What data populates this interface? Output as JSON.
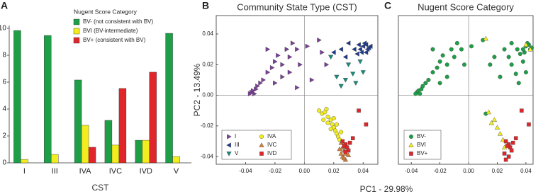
{
  "chart_data": [
    {
      "type": "bar",
      "panel": "A",
      "x_label": "CST",
      "categories": [
        "I",
        "III",
        "IVA",
        "IVC",
        "IVD",
        "V"
      ],
      "legend_title": "Nugent Score Category",
      "series": [
        {
          "name": "BV- (not consistent with BV)",
          "color": "#1f9e48",
          "values": [
            9.84,
            9.47,
            6.16,
            3.16,
            1.68,
            9.63
          ]
        },
        {
          "name": "BVI (BV-intermediate)",
          "color": "#f3ec1e",
          "values": [
            0.26,
            0.63,
            2.79,
            1.32,
            1.68,
            0.47
          ]
        },
        {
          "name": "BV+ (consistent with BV)",
          "color": "#e0262a",
          "values": [
            0,
            0,
            1.16,
            5.53,
            6.74,
            0
          ]
        }
      ],
      "ylim": [
        0,
        10
      ],
      "yticks": [
        0,
        2,
        4,
        6,
        8,
        10
      ]
    },
    {
      "type": "scatter",
      "panel": "B",
      "title": "Community State Type (CST)",
      "y_label": "PC2 - 13.49%",
      "x_label": "PC1 - 29.98%",
      "xlim": [
        -0.06,
        0.05
      ],
      "ylim": [
        -0.045,
        0.052
      ],
      "xticks": [
        -0.04,
        -0.02,
        {
          "value": 0,
          "label": "0.00"
        },
        0.02,
        0.04
      ],
      "yticks": [
        -0.04,
        -0.02,
        {
          "value": 0,
          "label": "0.00"
        },
        0.02,
        0.04
      ],
      "legend": "lower left",
      "series": [
        {
          "name": "I",
          "color": "#7b3f98",
          "marker": "tri-right",
          "x": [
            -0.036,
            -0.035,
            -0.034,
            -0.033,
            -0.037,
            -0.032,
            -0.03,
            -0.028,
            -0.025,
            -0.022,
            -0.02,
            -0.018,
            -0.015,
            -0.012,
            -0.01,
            -0.008,
            -0.005,
            -0.003,
            -0.015,
            -0.02,
            -0.025,
            -0.01,
            0.002,
            0.01,
            0.012,
            0.015,
            0.005,
            -0.005
          ],
          "y": [
            0.002,
            0.003,
            0.001,
            0.004,
            0.001,
            0.006,
            0.008,
            0.01,
            0.015,
            0.018,
            0.022,
            0.026,
            0.02,
            0.03,
            0.025,
            0.034,
            0.03,
            0.02,
            0.012,
            0.008,
            0.03,
            0.015,
            0.032,
            0.036,
            0.028,
            0.02,
            0.01,
            0.005
          ]
        },
        {
          "name": "III",
          "color": "#1f3b8f",
          "marker": "tri-left",
          "x": [
            0.04,
            0.042,
            0.043,
            0.044,
            0.041,
            0.039,
            0.038,
            0.045,
            0.036,
            0.034,
            0.03,
            0.028,
            0.025,
            0.02,
            0.037,
            0.042
          ],
          "y": [
            0.032,
            0.033,
            0.03,
            0.031,
            0.034,
            0.028,
            0.03,
            0.032,
            0.027,
            0.03,
            0.034,
            0.025,
            0.03,
            0.028,
            0.033,
            0.028
          ]
        },
        {
          "name": "V",
          "color": "#1b8a7a",
          "marker": "tri-down",
          "x": [
            0.022,
            0.028,
            0.033,
            0.035,
            0.04,
            0.03,
            0.025,
            0.038,
            0.018
          ],
          "y": [
            0.012,
            0.01,
            0.014,
            0.008,
            0.015,
            0.02,
            0.006,
            0.022,
            0.025
          ]
        },
        {
          "name": "IVA",
          "color": "#f3ec1e",
          "marker": "circle",
          "x": [
            0.01,
            0.012,
            0.014,
            0.016,
            0.018,
            0.019,
            0.02,
            0.021,
            0.022,
            0.023,
            0.024,
            0.018,
            0.016,
            0.02,
            0.022,
            0.025,
            0.015,
            0.013
          ],
          "y": [
            -0.01,
            -0.012,
            -0.011,
            -0.014,
            -0.016,
            -0.019,
            -0.021,
            -0.023,
            -0.025,
            -0.027,
            -0.029,
            -0.022,
            -0.018,
            -0.015,
            -0.019,
            -0.024,
            -0.009,
            -0.016
          ]
        },
        {
          "name": "IVC",
          "color": "#d9823b",
          "marker": "tri-up",
          "x": [
            0.025,
            0.026,
            0.027,
            0.028,
            0.026,
            0.028,
            0.025,
            0.029,
            0.024,
            0.027,
            0.03
          ],
          "y": [
            -0.031,
            -0.034,
            -0.036,
            -0.038,
            -0.04,
            -0.042,
            -0.038,
            -0.034,
            -0.035,
            -0.041,
            -0.039
          ]
        },
        {
          "name": "IVD",
          "color": "#e0262a",
          "marker": "square",
          "x": [
            0.026,
            0.028,
            0.029,
            0.03,
            0.027,
            0.031,
            0.037,
            0.042,
            0.033,
            0.028
          ],
          "y": [
            -0.03,
            -0.032,
            -0.034,
            -0.036,
            -0.033,
            -0.031,
            -0.01,
            -0.019,
            -0.028,
            -0.037
          ]
        }
      ]
    },
    {
      "type": "scatter",
      "panel": "C",
      "title": "Nugent Score Category",
      "xlim": [
        -0.049,
        0.045
      ],
      "ylim": [
        -0.045,
        0.052
      ],
      "xticks": [
        -0.04,
        -0.02,
        {
          "value": 0,
          "label": "0.00"
        },
        0.02,
        0.04
      ],
      "legend": "lower left",
      "series": [
        {
          "name": "BV-",
          "color": "#1f9e48",
          "marker": "circle",
          "x": [
            -0.036,
            -0.035,
            -0.034,
            -0.033,
            -0.037,
            -0.032,
            -0.03,
            -0.028,
            -0.025,
            -0.022,
            -0.02,
            -0.018,
            -0.015,
            -0.012,
            -0.01,
            -0.008,
            -0.005,
            -0.003,
            -0.015,
            -0.02,
            -0.025,
            0.002,
            0.01,
            0.015,
            0.04,
            0.042,
            0.043,
            0.044,
            0.041,
            0.039,
            0.038,
            0.036,
            0.034,
            0.03,
            0.028,
            0.025,
            0.022,
            0.033,
            0.035,
            0.04,
            0.03,
            0.038,
            0.018,
            0.012
          ],
          "y": [
            0.002,
            0.003,
            0.001,
            0.004,
            0.001,
            0.006,
            0.008,
            0.01,
            0.015,
            0.018,
            0.022,
            0.026,
            0.02,
            0.03,
            0.025,
            0.034,
            0.03,
            0.02,
            0.012,
            0.008,
            0.03,
            0.032,
            0.036,
            0.02,
            0.032,
            0.033,
            0.03,
            0.031,
            0.034,
            0.028,
            0.03,
            0.027,
            0.03,
            0.034,
            0.025,
            0.03,
            0.012,
            0.014,
            0.008,
            0.015,
            0.02,
            0.022,
            0.025,
            -0.012
          ]
        },
        {
          "name": "BVI",
          "color": "#f3ec1e",
          "marker": "tri-up",
          "x": [
            0.014,
            0.018,
            0.02,
            0.022,
            0.024,
            0.016,
            0.012,
            0.043,
            0.04,
            0.025
          ],
          "y": [
            -0.011,
            -0.016,
            -0.021,
            -0.025,
            -0.029,
            -0.018,
            0.037,
            0.03,
            0.033,
            -0.034
          ]
        },
        {
          "name": "BV+",
          "color": "#e0262a",
          "marker": "square",
          "x": [
            0.026,
            0.028,
            0.029,
            0.03,
            0.027,
            0.031,
            0.037,
            0.042,
            0.033,
            0.028,
            0.025,
            0.026
          ],
          "y": [
            -0.03,
            -0.032,
            -0.034,
            -0.036,
            -0.033,
            -0.031,
            -0.01,
            -0.019,
            -0.028,
            -0.04,
            -0.038,
            -0.042
          ]
        }
      ]
    }
  ]
}
